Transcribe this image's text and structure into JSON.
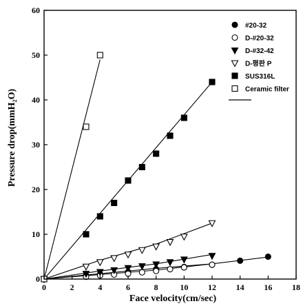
{
  "chart_data": {
    "type": "scatter",
    "xlabel": "Face velocity(cm/sec)",
    "ylabel": "Pressure drop(mmH₂O)",
    "xlim": [
      0,
      18
    ],
    "ylim": [
      0,
      60
    ],
    "xticks": [
      0,
      2,
      4,
      6,
      8,
      10,
      12,
      14,
      16,
      18
    ],
    "yticks": [
      0,
      10,
      20,
      30,
      40,
      50,
      60
    ],
    "grid": false,
    "legend": "top-right",
    "series": [
      {
        "name": "#20-32",
        "marker": "circle-filled",
        "x": [
          0,
          3,
          4,
          6,
          8,
          10,
          12,
          14,
          16
        ],
        "y": [
          0,
          0.8,
          1.1,
          1.6,
          2.2,
          2.7,
          3.2,
          4.1,
          5.0
        ],
        "fit": [
          [
            0,
            0
          ],
          [
            4,
            1.2
          ],
          [
            8,
            2.4
          ],
          [
            12,
            3.4
          ],
          [
            16,
            4.9
          ]
        ]
      },
      {
        "name": "D-#20-32",
        "marker": "circle-open",
        "x": [
          0,
          3,
          4,
          5,
          6,
          7,
          8,
          9,
          10,
          12
        ],
        "y": [
          0,
          0.5,
          0.8,
          1.0,
          1.2,
          1.5,
          1.8,
          2.2,
          2.6,
          3.2
        ],
        "fit": [
          [
            0,
            0
          ],
          [
            4,
            1.0
          ],
          [
            8,
            2.0
          ],
          [
            12,
            3.4
          ]
        ]
      },
      {
        "name": "D-#32-42",
        "marker": "triangle-down-filled",
        "x": [
          0,
          3,
          4,
          5,
          6,
          7,
          8,
          9,
          10,
          12
        ],
        "y": [
          0,
          1.2,
          1.6,
          2.0,
          2.5,
          2.9,
          3.3,
          3.8,
          4.4,
          5.2
        ],
        "fit": [
          [
            0,
            0
          ],
          [
            4,
            1.8
          ],
          [
            8,
            3.4
          ],
          [
            12,
            5.5
          ]
        ]
      },
      {
        "name": "D-평판 P",
        "marker": "triangle-down-open",
        "x": [
          0,
          3,
          4,
          5,
          6,
          7,
          8,
          9,
          10,
          12
        ],
        "y": [
          0,
          2.8,
          3.8,
          4.7,
          5.5,
          6.5,
          7.3,
          8.3,
          9.5,
          12.5
        ],
        "fit": [
          [
            0,
            0
          ],
          [
            4,
            4.2
          ],
          [
            8,
            7.8
          ],
          [
            12,
            12.5
          ]
        ]
      },
      {
        "name": "SUS316L",
        "marker": "square-filled",
        "x": [
          0,
          3,
          4,
          5,
          6,
          7,
          8,
          9,
          10,
          12
        ],
        "y": [
          0,
          10,
          14,
          17,
          22,
          25,
          28,
          32,
          36,
          44
        ],
        "fit": [
          [
            0,
            0
          ],
          [
            12,
            44
          ]
        ]
      },
      {
        "name": "Ceramic filter",
        "marker": "square-open",
        "x": [
          0,
          3,
          4
        ],
        "y": [
          0,
          34,
          50
        ],
        "fit": [
          [
            0,
            0
          ],
          [
            4,
            49
          ]
        ]
      }
    ],
    "legend_line": true
  }
}
